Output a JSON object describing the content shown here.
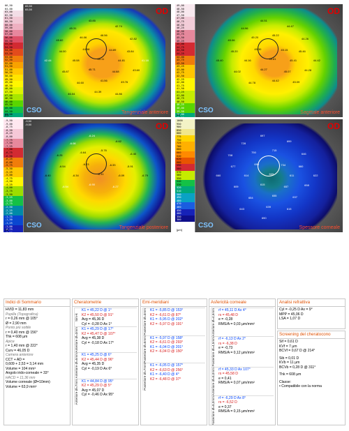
{
  "maps": [
    {
      "id": "tang-ant",
      "header": [
        "65,50",
        "OD",
        "65,50"
      ],
      "eye": "OD",
      "logo": "CSO",
      "title": "Tangenziale anteriore",
      "scale": [
        "66,50",
        "64,00",
        "63,00",
        "62,50",
        "61,50",
        "60,50",
        "60,00",
        "59,00",
        "58,00",
        "57,00",
        "56,00",
        "55,50",
        "55,00",
        "54,50",
        "54,00",
        "53,50",
        "53,00",
        "52,50",
        "52,00",
        "51,50",
        "51,00",
        "50,50",
        "50,00",
        "49,50",
        "49,00",
        "48,50",
        "48,00",
        "47,50",
        "47,00",
        "46,50",
        "46,00",
        "45,50",
        "45,00",
        "44,50",
        "44,00",
        "43,00",
        "42,00",
        "41,00",
        "40,00",
        "39,00",
        "38,00",
        "37,00",
        "36,00",
        "35,00",
        "34,00",
        "33,00",
        "32,00",
        "31,00",
        "30,00",
        "28,00"
      ],
      "unit": "[D]",
      "values": [
        "45.31",
        "43.85",
        "42.74",
        "45.82",
        "46.06",
        "46.56",
        "42.82",
        "44.00",
        "44.58",
        "44.89",
        "43.84",
        "42.44",
        "45.08",
        "45.11",
        "44.81",
        "41.18",
        "45.87",
        "45.71",
        "44.68",
        "43.60",
        "44.60",
        "41.56",
        "49.76",
        "46.04",
        "44.39",
        "44.86"
      ]
    },
    {
      "id": "sag-ant",
      "header": [
        "",
        "OD",
        ""
      ],
      "eye": "OD",
      "logo": "CSO",
      "title": "Sagittale anteriore",
      "scale": [
        "49,00",
        "48,50",
        "48,00",
        "47,50",
        "47,00",
        "46,75",
        "46,50",
        "46,25",
        "46,00",
        "45,75",
        "45,50",
        "45,25",
        "45,00",
        "44,75",
        "44,50",
        "44,25",
        "44,00",
        "43,75",
        "43,50",
        "43,25",
        "43,00",
        "42,75",
        "42,50",
        "42,25",
        "42,00",
        "41,75",
        "41,50",
        "41,25",
        "41,00",
        "40,75",
        "40,50",
        "40,25",
        "40,00",
        "39,50",
        "39,00",
        "38,50",
        "38,00",
        "37,50",
        "37,00",
        "36,50",
        "36,00",
        "35,00",
        "34,00",
        "33,00",
        "32,00",
        "31,00",
        "30,00",
        "29,00",
        "28,00"
      ],
      "unit": "[D]",
      "values": [
        "44.96",
        "44.51",
        "44.47",
        "45.06",
        "45.20",
        "45.22",
        "44.26",
        "45.20",
        "45.30",
        "45.15",
        "45.46",
        "45.40",
        "44.16",
        "45.81",
        "45.41",
        "44.42",
        "44.02",
        "44.27",
        "45.07",
        "44.28",
        "44.78",
        "44.42",
        "45.09"
      ]
    },
    {
      "id": "tang-post",
      "header": [
        "-9,50",
        "OD",
        "-9,50"
      ],
      "eye": "OD",
      "logo": "CSO",
      "title": "Tangenziale posteriore",
      "scale": [
        "-9,50",
        "-9,00",
        "-8,75",
        "-8,50",
        "-8,25",
        "-8,00",
        "-7,75",
        "-7,50",
        "-7,25",
        "-7,00",
        "-6,75",
        "-6,50",
        "-6,25",
        "-6,00",
        "-5,75",
        "-5,50",
        "-5,25",
        "-5,00",
        "-4,75",
        "-4,50",
        "-4,25",
        "-4,00",
        "-3,75",
        "-3,50",
        "-3,25",
        "-3,00",
        "-2,75",
        "-2,50",
        "-2,25",
        "-2,00",
        "-1,75",
        "-1,50",
        "-1,25",
        "-1,00",
        "-0,75",
        "-0,50",
        "-0,25",
        "0,00"
      ],
      "unit": "[D]",
      "values": [
        "-6.08",
        "-6.24",
        "-6.62",
        "-6.25",
        "-6.64",
        "-5.76",
        "-6.40",
        "-6.54",
        "-6.23",
        "-6.33",
        "-5.91",
        "-6.40",
        "-6.34",
        "-6.31",
        "-6.09",
        "-6.79",
        "-6.54",
        "-6.90",
        "-6.27"
      ]
    },
    {
      "id": "spess",
      "header": [
        "",
        "OD",
        ""
      ],
      "eye": "OD",
      "logo": "CSO",
      "title": "Spessore corneale",
      "scale": [
        "1000",
        "950",
        "900",
        "850",
        "800",
        "775",
        "750",
        "725",
        "700",
        "680",
        "660",
        "640",
        "620",
        "600",
        "590",
        "580",
        "570",
        "560",
        "550",
        "540",
        "530",
        "520",
        "510",
        "500",
        "490",
        "480",
        "470",
        "460",
        "450",
        "400",
        "350",
        "300"
      ],
      "unit": "[µm]",
      "values": [
        "728",
        "697",
        "699",
        "708",
        "750",
        "715",
        "646",
        "677",
        "695",
        "734",
        "660",
        "660",
        "614",
        "609",
        "611",
        "622",
        "609",
        "615",
        "657",
        "658",
        "654",
        "655",
        "637",
        "643",
        "639",
        "615",
        "690"
      ]
    }
  ],
  "sommario": {
    "title": "Indici di Sommario",
    "lines": [
      "HVID = 11,83 mm",
      "Pupilla (Topografica)",
      "r = 0,26 mm @ 105°",
      "Ø = 2,90 mm",
      "Punto più sottile",
      "r = 0,40 mm @ 156°",
      "Thk = 608 µm",
      "Apice",
      "r = 1,40 mm @ 222°",
      "Curv = 46,05 D",
      "Camera anteriore",
      "CCT + AD =",
      "0,609 + 2,53 = 3,14 mm",
      "Volume = 104 mm³",
      "Angolo irido-corneale = 33°",
      "HACD = 11,36 mm",
      "Volume corneale (Ø=10mm)",
      "Volume = 63,9 mm³"
    ]
  },
  "cherato": {
    "title": "Cheratometrie",
    "groups": [
      {
        "label": "Sim-k",
        "lines": [
          [
            "K1 = 45,22 D @ 1°",
            "blue"
          ],
          [
            "K2 = 45,50 D @ 91°",
            "red"
          ],
          [
            "Avg = 45,36 D",
            ""
          ],
          [
            "Cyl = -0,28 D Ax 1°",
            ""
          ]
        ]
      },
      {
        "label": "Anteriore Ø=3mm",
        "lines": [
          [
            "K1 = 45,29 D @ 17°",
            "blue"
          ],
          [
            "K2 = 45,47 D @ 107°",
            "red"
          ],
          [
            "Avg = 45,38 D",
            ""
          ],
          [
            "Cyl = -0,18 D Ax 17°",
            ""
          ]
        ]
      },
      {
        "label": "Anteriore Ø=5mm",
        "lines": [
          [
            "K1 = 45,25 D @ 6°",
            "blue"
          ],
          [
            "K2 = 45,44 D @ 96°",
            "red"
          ],
          [
            "Avg = 45,35 D",
            ""
          ],
          [
            "Cyl = -0,19 D Ax 6°",
            ""
          ]
        ]
      },
      {
        "label": "Anteriore Ø=7mm",
        "lines": [
          [
            "K1 = 44,84 D @ 95°",
            "blue"
          ],
          [
            "K2 = 45,29 D @ 5°",
            "red"
          ],
          [
            "Avg = 45,07 D",
            ""
          ],
          [
            "Cyl = -0,46 D Ax 95°",
            ""
          ]
        ]
      }
    ]
  },
  "emi": {
    "title": "Emi-meridiani",
    "groups": [
      {
        "label": "Posteriore Ø=3mm",
        "lines": [
          [
            "K1 = -5,85 D @ 153°",
            "blue"
          ],
          [
            "K2 = -6,61 D @ 87°",
            "red"
          ],
          [
            "K1 = -5,95 D @ 202°",
            "blue"
          ],
          [
            "K2 = -5,97 D @ 191°",
            "red"
          ]
        ]
      },
      {
        "label": "Posteriore Ø=5mm",
        "lines": [
          [
            "K1 = -5,97 D @ 158°",
            "blue"
          ],
          [
            "K2 = -6,61 D @ 293°",
            "red"
          ],
          [
            "K1 = -6,04 D @ 201°",
            "blue"
          ],
          [
            "K2 = -6,04 D @ 150°",
            "red"
          ]
        ]
      },
      {
        "label": "Posteriore Ø=7mm",
        "lines": [
          [
            "K1 = -6,05 D @ 157°",
            "blue"
          ],
          [
            "K2 = -6,63 D @ 256°",
            "red"
          ],
          [
            "K1 = -6,40 D @ 4°",
            "blue"
          ],
          [
            "K2 = -6,48 D @ 37°",
            "red"
          ]
        ]
      }
    ]
  },
  "asfer": {
    "title": "Asfericità corneale",
    "groups": [
      {
        "label": "Anteriore Ø=4,5mm",
        "lines": [
          [
            "rf = 45,11 D Ax 4°",
            "blue"
          ],
          [
            "rs = 45,48 D",
            "red"
          ],
          [
            "e = -0,28",
            ""
          ],
          [
            "RMS/A = 0,03 µm/mm²",
            ""
          ]
        ]
      },
      {
        "label": "Posteriore Ø=4,5mm",
        "lines": [
          [
            "rf = -6,13 D Ax 2°",
            "blue"
          ],
          [
            "rs = -6,38 D",
            "red"
          ],
          [
            "e = -0,73",
            ""
          ],
          [
            "RMS/A = 0,12 µm/mm²",
            ""
          ]
        ]
      },
      {
        "label": "Anteriore Ø=8,0mm",
        "lines": [
          [
            "rf = 45,33 D Ax 107°",
            "blue"
          ],
          [
            "rs = 45,58 D",
            "red"
          ],
          [
            "e = 0,41",
            ""
          ],
          [
            "RMS/A = 0,07 µm/mm²",
            ""
          ]
        ]
      },
      {
        "label": "Posteriore Ø=8,0mm",
        "lines": [
          [
            "rf = -6,29 D Ax 8°",
            "blue"
          ],
          [
            "rs = -6,52 D",
            "red"
          ],
          [
            "e = 0,37",
            ""
          ],
          [
            "RMS/A = 0,15 µm/mm²",
            ""
          ]
        ]
      }
    ]
  },
  "rifr": {
    "title": "Analisi refrattiva",
    "lines": [
      "Cyl = -0,25 D Ax = 9°",
      "MPP = 45,06 D",
      "LSA = 1,07 D"
    ]
  },
  "screen": {
    "title": "Screening del cheratocono",
    "lines": [
      "Sif = 0,61 D",
      "KVf = 7 µm",
      "BCVf = 0,67 D @ 214°",
      "",
      "Sib = 0,01 D",
      "KVb = 11 µm",
      "BCVb = 0,28 D @ 311°",
      "",
      "Thk = 608 µm",
      "",
      "Classe:",
      "• Compatibile con la norma"
    ]
  }
}
